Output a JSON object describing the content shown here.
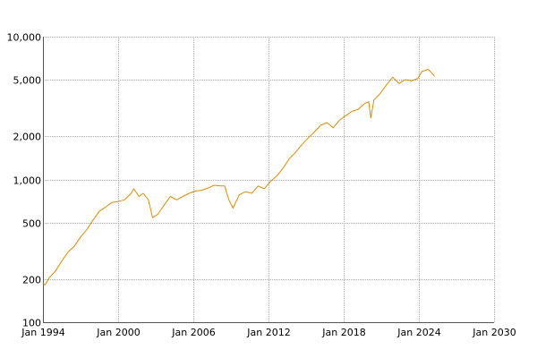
{
  "chart_data": {
    "type": "line",
    "title": "",
    "xlabel": "",
    "ylabel": "",
    "y_scale": "log",
    "xlim": [
      "1994-01",
      "2030-01"
    ],
    "ylim": [
      100,
      10000
    ],
    "grid": true,
    "x_ticks": [
      {
        "date": "1994-01",
        "label": "Jan 1994"
      },
      {
        "date": "2000-01",
        "label": "Jan 2000"
      },
      {
        "date": "2006-01",
        "label": "Jan 2006"
      },
      {
        "date": "2012-01",
        "label": "Jan 2012"
      },
      {
        "date": "2018-01",
        "label": "Jan 2018"
      },
      {
        "date": "2024-01",
        "label": "Jan 2024"
      },
      {
        "date": "2030-01",
        "label": "Jan 2030"
      }
    ],
    "y_ticks": [
      {
        "value": 100,
        "label": "100"
      },
      {
        "value": 200,
        "label": "200"
      },
      {
        "value": 500,
        "label": "500"
      },
      {
        "value": 1000,
        "label": "1,000"
      },
      {
        "value": 2000,
        "label": "2,000"
      },
      {
        "value": 5000,
        "label": "5,000"
      },
      {
        "value": 10000,
        "label": "10,000"
      }
    ],
    "series": [
      {
        "color": "#d98c0a",
        "points": [
          [
            "1994-01",
            188
          ],
          [
            "1994-03",
            182
          ],
          [
            "1994-07",
            205
          ],
          [
            "1995-01",
            228
          ],
          [
            "1995-07",
            268
          ],
          [
            "1996-01",
            310
          ],
          [
            "1996-07",
            340
          ],
          [
            "1997-01",
            395
          ],
          [
            "1997-07",
            445
          ],
          [
            "1998-01",
            520
          ],
          [
            "1998-07",
            600
          ],
          [
            "1999-01",
            640
          ],
          [
            "1999-07",
            690
          ],
          [
            "2000-01",
            700
          ],
          [
            "2000-07",
            720
          ],
          [
            "2001-01",
            790
          ],
          [
            "2001-04",
            860
          ],
          [
            "2001-09",
            760
          ],
          [
            "2002-01",
            800
          ],
          [
            "2002-06",
            720
          ],
          [
            "2002-10",
            540
          ],
          [
            "2003-03",
            570
          ],
          [
            "2003-09",
            660
          ],
          [
            "2004-03",
            760
          ],
          [
            "2004-09",
            720
          ],
          [
            "2005-03",
            760
          ],
          [
            "2005-09",
            800
          ],
          [
            "2006-03",
            830
          ],
          [
            "2006-09",
            840
          ],
          [
            "2007-03",
            870
          ],
          [
            "2007-09",
            910
          ],
          [
            "2008-03",
            900
          ],
          [
            "2008-07",
            900
          ],
          [
            "2008-11",
            720
          ],
          [
            "2009-03",
            630
          ],
          [
            "2009-09",
            780
          ],
          [
            "2010-03",
            820
          ],
          [
            "2010-09",
            800
          ],
          [
            "2011-03",
            900
          ],
          [
            "2011-09",
            860
          ],
          [
            "2012-03",
            970
          ],
          [
            "2012-09",
            1060
          ],
          [
            "2013-03",
            1200
          ],
          [
            "2013-09",
            1400
          ],
          [
            "2014-03",
            1550
          ],
          [
            "2014-09",
            1750
          ],
          [
            "2015-03",
            1950
          ],
          [
            "2015-09",
            2150
          ],
          [
            "2016-03",
            2400
          ],
          [
            "2016-09",
            2500
          ],
          [
            "2017-03",
            2300
          ],
          [
            "2017-09",
            2600
          ],
          [
            "2018-03",
            2800
          ],
          [
            "2018-09",
            3000
          ],
          [
            "2019-03",
            3100
          ],
          [
            "2019-09",
            3400
          ],
          [
            "2020-01",
            3500
          ],
          [
            "2020-03",
            2700
          ],
          [
            "2020-06",
            3600
          ],
          [
            "2020-12",
            4000
          ],
          [
            "2021-06",
            4600
          ],
          [
            "2021-12",
            5200
          ],
          [
            "2022-06",
            4700
          ],
          [
            "2022-12",
            5000
          ],
          [
            "2023-06",
            4900
          ],
          [
            "2023-12",
            5100
          ],
          [
            "2024-04",
            5700
          ],
          [
            "2024-10",
            5900
          ],
          [
            "2025-01",
            5600
          ],
          [
            "2025-04",
            5300
          ]
        ]
      }
    ]
  }
}
